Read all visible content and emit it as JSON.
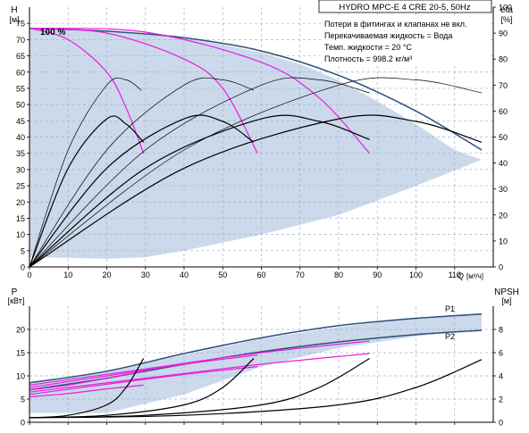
{
  "chart_data": [
    {
      "type": "line",
      "title": "HYDRO MPC-E 4 CRE 20-5, 50Hz",
      "notes": [
        "Потери в фитингах и клапанах не вкл.",
        "Перекачиваемая жидкость = Вода",
        "Темп. жидкости = 20 °C",
        "Плотность = 998.2 кг/м³"
      ],
      "ylabel_left": "H",
      "yunit_left": "[м]",
      "ylabel_right": "eta",
      "yunit_right": "[%]",
      "xlabel": "Q",
      "xunit": "[м³/ч]",
      "curve_label": "100 %",
      "xlim": [
        0,
        120
      ],
      "ylim": [
        0,
        80
      ],
      "ylim_right": [
        0,
        100
      ],
      "x_ticks": [
        0,
        10,
        20,
        30,
        40,
        50,
        60,
        70,
        80,
        90,
        100,
        110
      ],
      "y_ticks": [
        0,
        5,
        10,
        15,
        20,
        25,
        30,
        35,
        40,
        45,
        50,
        55,
        60,
        65,
        70,
        75
      ],
      "y_right_ticks": [
        0,
        10,
        20,
        30,
        40,
        50,
        60,
        70,
        80,
        90,
        100
      ],
      "grid": true,
      "operating_range": {
        "x": [
          0,
          10,
          20,
          30,
          40,
          50,
          60,
          70,
          80,
          90,
          100,
          110,
          117,
          100,
          80,
          60,
          40,
          30,
          20,
          10,
          0
        ],
        "y": [
          73.5,
          73.2,
          72.6,
          71.8,
          70.5,
          68.5,
          66,
          62.5,
          57.5,
          51,
          44,
          36,
          33,
          25,
          16,
          10,
          5,
          3,
          2.5,
          2.8,
          3
        ]
      },
      "series": [
        {
          "role": "head_max",
          "color": "#2c4e7a",
          "x": [
            0,
            20,
            40,
            60,
            80,
            100,
            117
          ],
          "y": [
            73.5,
            72.6,
            70.6,
            66.5,
            59,
            48,
            36
          ]
        },
        {
          "role": "head_1_pump",
          "color": "#e81ee0",
          "x": [
            0,
            10,
            20,
            25,
            29.5
          ],
          "y": [
            73.5,
            70,
            60,
            49,
            35
          ]
        },
        {
          "role": "head_2_pumps",
          "color": "#e81ee0",
          "x": [
            0,
            20,
            40,
            50,
            59
          ],
          "y": [
            73.5,
            72,
            64,
            55,
            35
          ]
        },
        {
          "role": "head_3_pumps",
          "color": "#e81ee0",
          "x": [
            0,
            30,
            60,
            75,
            88
          ],
          "y": [
            73.5,
            72.3,
            63,
            52,
            35
          ]
        },
        {
          "role": "eta_1_pump",
          "color": "#000000",
          "x": [
            0,
            10,
            20,
            25,
            29.5
          ],
          "y": [
            0,
            38,
            57,
            55,
            48
          ]
        },
        {
          "role": "eta_2_pumps",
          "color": "#000000",
          "x": [
            0,
            20,
            40,
            50,
            58
          ],
          "y": [
            0,
            38,
            57,
            56,
            48
          ]
        },
        {
          "role": "eta_3_pumps",
          "color": "#000000",
          "x": [
            0,
            30,
            60,
            75,
            88
          ],
          "y": [
            0,
            38,
            57,
            56,
            49
          ]
        },
        {
          "role": "eta_4_pumps",
          "color": "#000000",
          "x": [
            0,
            40,
            80,
            100,
            117
          ],
          "y": [
            0,
            38,
            57,
            56,
            48
          ]
        },
        {
          "role": "eta_3_thin",
          "color": "#000000",
          "x": [
            0,
            20,
            40,
            50,
            58
          ],
          "y": [
            0,
            45,
            70,
            72,
            68
          ]
        },
        {
          "role": "eta_4_thin",
          "color": "#000000",
          "x": [
            0,
            10,
            20,
            25,
            29
          ],
          "y": [
            0,
            45,
            70,
            72,
            68
          ]
        },
        {
          "role": "eta_5_thin",
          "color": "#000000",
          "x": [
            0,
            30,
            60,
            75,
            88
          ],
          "y": [
            0,
            45,
            70,
            72,
            67
          ]
        },
        {
          "role": "eta_6_thin",
          "color": "#000000",
          "x": [
            0,
            40,
            80,
            100,
            117
          ],
          "y": [
            0,
            45,
            70,
            72,
            67
          ]
        }
      ]
    },
    {
      "type": "line",
      "ylabel_left": "P",
      "yunit_left": "[кВт]",
      "ylabel_right": "NPSH",
      "yunit_right": "[м]",
      "xlim": [
        0,
        120
      ],
      "ylim": [
        0,
        25
      ],
      "ylim_right": [
        0,
        10
      ],
      "y_ticks": [
        0,
        5,
        10,
        15,
        20
      ],
      "y_right_ticks": [
        0,
        2,
        4,
        6,
        8
      ],
      "grid": true,
      "operating_range": {
        "x": [
          0,
          20,
          40,
          60,
          80,
          100,
          117,
          117,
          100,
          80,
          60,
          40,
          20,
          0
        ],
        "y": [
          8.5,
          11,
          14.5,
          18,
          20.5,
          22.5,
          23.5,
          20,
          18.5,
          16,
          12,
          6,
          2,
          2
        ]
      },
      "series": [
        {
          "name": "P1",
          "color": "#2c4e7a",
          "x": [
            0,
            20,
            40,
            60,
            80,
            100,
            117
          ],
          "y": [
            8.5,
            11,
            14.8,
            18.2,
            20.8,
            22.4,
            23.3
          ]
        },
        {
          "name": "P2",
          "color": "#2c4e7a",
          "x": [
            0,
            20,
            40,
            60,
            80,
            100,
            117
          ],
          "y": [
            7,
            9.5,
            12.5,
            15.2,
            17.3,
            18.9,
            19.8
          ]
        },
        {
          "role": "P1_1_pump",
          "color": "#e81ee0",
          "x": [
            0,
            10,
            20,
            29.5
          ],
          "y": [
            7,
            8,
            9.5,
            11
          ]
        },
        {
          "role": "P2_1_pump",
          "color": "#e81ee0",
          "x": [
            0,
            10,
            20,
            29.5
          ],
          "y": [
            5.5,
            6.2,
            7.2,
            8
          ]
        },
        {
          "role": "P1_2_pumps",
          "color": "#e81ee0",
          "x": [
            0,
            20,
            40,
            59
          ],
          "y": [
            7.5,
            10,
            12.5,
            14.5
          ]
        },
        {
          "role": "P2_2_pumps",
          "color": "#e81ee0",
          "x": [
            0,
            20,
            40,
            59
          ],
          "y": [
            6,
            8.2,
            10.3,
            12
          ]
        },
        {
          "role": "P1_3_pumps",
          "color": "#e81ee0",
          "x": [
            0,
            30,
            60,
            88
          ],
          "y": [
            8,
            11.5,
            15,
            17.5
          ]
        },
        {
          "role": "P2_3_pumps",
          "color": "#e81ee0",
          "x": [
            0,
            30,
            60,
            88
          ],
          "y": [
            6.5,
            9.5,
            12.5,
            14.8
          ]
        },
        {
          "role": "npsh_1_pump",
          "color": "#000000",
          "x": [
            0,
            10,
            20,
            25,
            29.5
          ],
          "y": [
            0.4,
            0.6,
            1.5,
            3,
            5.5
          ]
        },
        {
          "role": "npsh_2_pumps",
          "color": "#000000",
          "x": [
            0,
            20,
            40,
            50,
            58
          ],
          "y": [
            0.4,
            0.6,
            1.5,
            3,
            5.5
          ]
        },
        {
          "role": "npsh_3_pumps",
          "color": "#000000",
          "x": [
            0,
            30,
            60,
            75,
            88
          ],
          "y": [
            0.4,
            0.6,
            1.5,
            3,
            5.5
          ]
        },
        {
          "role": "npsh_4_pumps",
          "color": "#000000",
          "x": [
            0,
            40,
            80,
            100,
            117
          ],
          "y": [
            0.4,
            0.6,
            1.5,
            3,
            5.4
          ]
        }
      ]
    }
  ]
}
